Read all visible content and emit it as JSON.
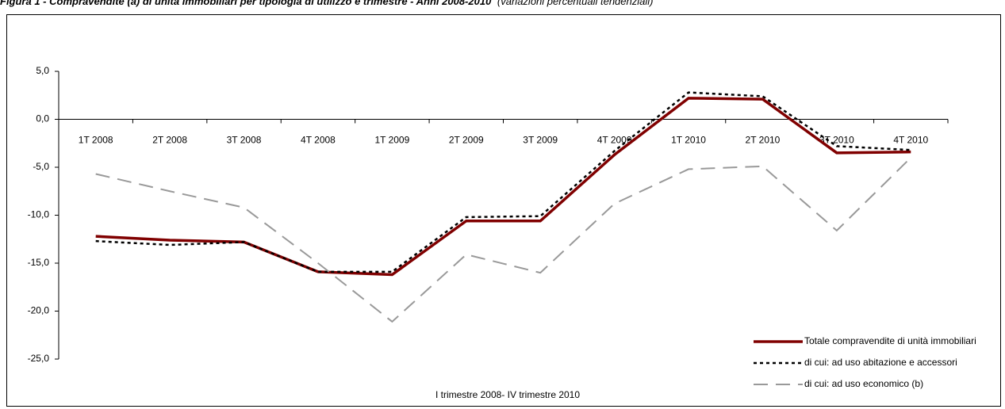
{
  "chart_data": {
    "type": "line",
    "title": "Figura 1 - Compravendite (a) di unità immobiliari per tipologia di utilizzo e trimestre - Anni 2008-2010",
    "subtitle": "(variazioni percentuali tendenziali)",
    "xlabel": "I trimestre 2008- IV trimestre 2010",
    "categories": [
      "1T 2008",
      "2T 2008",
      "3T 2008",
      "4T 2008",
      "1T 2009",
      "2T 2009",
      "3T 2009",
      "4T 2009",
      "1T 2010",
      "2T 2010",
      "3T 2010",
      "4T 2010"
    ],
    "series": [
      {
        "name": "Totale compravendite di unità immobiliari",
        "color": "#800000",
        "dash": "solid",
        "values": [
          -12.2,
          -12.6,
          -12.8,
          -15.9,
          -16.2,
          -10.6,
          -10.6,
          -3.7,
          2.2,
          2.1,
          -3.5,
          -3.4
        ]
      },
      {
        "name": "di cui: ad uso abitazione e accessori",
        "color": "#000000",
        "dash": "dotted",
        "values": [
          -12.7,
          -13.1,
          -12.8,
          -15.9,
          -15.9,
          -10.2,
          -10.1,
          -3.3,
          2.8,
          2.4,
          -2.8,
          -3.2
        ]
      },
      {
        "name": "di cui: ad uso economico (b)",
        "color": "#999999",
        "dash": "dashed",
        "values": [
          -5.7,
          -7.5,
          -9.2,
          -15.0,
          -21.1,
          -14.1,
          -16.0,
          -8.8,
          -5.2,
          -4.9,
          -11.6,
          -4.0
        ]
      }
    ],
    "ylim": [
      -25,
      5
    ],
    "yticks": [
      {
        "value": -25,
        "label": "-25,0"
      },
      {
        "value": -20,
        "label": "-20,0"
      },
      {
        "value": -15,
        "label": "-15,0"
      },
      {
        "value": -10,
        "label": "-10,0"
      },
      {
        "value": -5,
        "label": "-5,0"
      },
      {
        "value": 0,
        "label": "0,0"
      },
      {
        "value": 5,
        "label": "5,0"
      }
    ],
    "grid": false,
    "legend": "lower right"
  }
}
